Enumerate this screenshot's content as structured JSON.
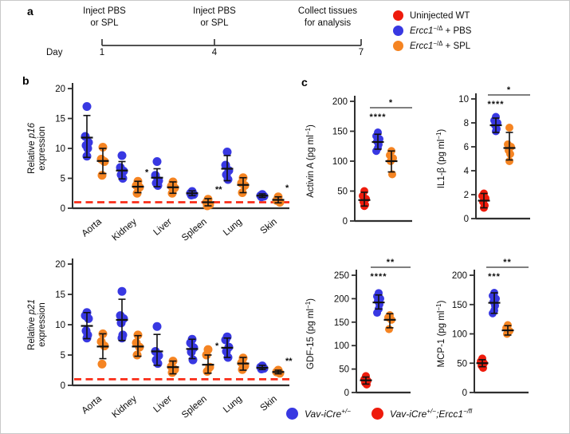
{
  "colors": {
    "red": "#ee1b0c",
    "blue": "#3838e2",
    "orange": "#f58422",
    "ref": "#fa2c17",
    "axis": "#2f2f2f",
    "bar": "#555555"
  },
  "panel_a": {
    "label": "a",
    "day_label": "Day",
    "events": [
      {
        "lines": [
          "Inject PBS",
          "or SPL"
        ],
        "day": "1"
      },
      {
        "lines": [
          "Inject PBS",
          "or SPL"
        ],
        "day": "4"
      },
      {
        "lines": [
          "Collect tissues",
          "for analysis"
        ],
        "day": "7"
      }
    ]
  },
  "panel_b": {
    "label": "b"
  },
  "panel_c": {
    "label": "c"
  },
  "legend_top": {
    "items": [
      {
        "color": "red",
        "label_parts": [
          {
            "t": "Uninjected WT"
          }
        ]
      },
      {
        "color": "blue",
        "label_parts": [
          {
            "t": "Ercc1",
            "i": true
          },
          {
            "t": "−/Δ",
            "sup": true
          },
          {
            "t": " + PBS"
          }
        ]
      },
      {
        "color": "orange",
        "label_parts": [
          {
            "t": "Ercc1",
            "i": true
          },
          {
            "t": "−/Δ",
            "sup": true
          },
          {
            "t": " + SPL"
          }
        ]
      }
    ]
  },
  "legend_bottom": {
    "items": [
      {
        "color": "blue",
        "label_parts": [
          {
            "t": "Vav-iCre",
            "i": true
          },
          {
            "t": "+/−",
            "sup": true,
            "i": true
          }
        ]
      },
      {
        "color": "red",
        "label_parts": [
          {
            "t": "Vav-iCre",
            "i": true
          },
          {
            "t": "+/−",
            "sup": true,
            "i": true
          },
          {
            "t": ";",
            "i": true
          },
          {
            "t": "Ercc1",
            "i": true
          },
          {
            "t": "−/fl",
            "sup": true,
            "i": true
          }
        ]
      }
    ]
  },
  "chart_data": [
    {
      "id": "p16",
      "type": "scatter",
      "ylabel_line1": [
        {
          "t": "Relative "
        },
        {
          "t": "p16",
          "i": true
        }
      ],
      "ylabel_line2": "expression",
      "ylim": [
        0,
        20
      ],
      "yticks": [
        0,
        5,
        10,
        15,
        20
      ],
      "reference_y": 1,
      "categories": [
        "Aorta",
        "Kidney",
        "Liver",
        "Spleen",
        "Lung",
        "Skin"
      ],
      "series": [
        {
          "name": "Ercc1−/Δ + PBS",
          "color": "blue",
          "groups": [
            {
              "points": [
                17,
                12,
                11,
                10.5,
                10,
                8.7
              ],
              "mean": 11.8,
              "lo": 8.5,
              "hi": 15.5,
              "sig": ""
            },
            {
              "points": [
                8.8,
                6.8,
                6.2,
                5.6,
                5.0
              ],
              "mean": 6.3,
              "lo": 4.9,
              "hi": 7.8,
              "sig": ""
            },
            {
              "points": [
                7.8,
                5.5,
                4.6,
                4.2,
                3.8
              ],
              "mean": 5.1,
              "lo": 3.6,
              "hi": 6.6,
              "sig": ""
            },
            {
              "points": [
                2.8,
                2.5,
                2.3,
                2.2
              ],
              "mean": 2.5,
              "lo": 2.1,
              "hi": 2.9,
              "sig": ""
            },
            {
              "points": [
                9.4,
                7.2,
                6.3,
                5.6,
                4.8
              ],
              "mean": 6.6,
              "lo": 4.6,
              "hi": 8.8,
              "sig": ""
            },
            {
              "points": [
                2.3,
                2.1,
                2.0,
                1.9
              ],
              "mean": 2.1,
              "lo": 1.8,
              "hi": 2.4,
              "sig": ""
            }
          ]
        },
        {
          "name": "Ercc1−/Δ + SPL",
          "color": "orange",
          "groups": [
            {
              "points": [
                10.2,
                8.2,
                7.8,
                5.5
              ],
              "mean": 7.9,
              "lo": 5.8,
              "hi": 10.0,
              "sig": ""
            },
            {
              "points": [
                4.5,
                3.8,
                3.5,
                2.5
              ],
              "mean": 3.6,
              "lo": 2.6,
              "hi": 4.5,
              "sig": "*"
            },
            {
              "points": [
                4.4,
                3.7,
                3.4,
                2.5
              ],
              "mean": 3.5,
              "lo": 2.5,
              "hi": 4.4,
              "sig": ""
            },
            {
              "points": [
                1.5,
                1.0,
                0.6,
                0.4
              ],
              "mean": 1.0,
              "lo": 0.4,
              "hi": 1.6,
              "sig": "**"
            },
            {
              "points": [
                5.1,
                4.2,
                3.8,
                2.6
              ],
              "mean": 3.9,
              "lo": 2.6,
              "hi": 5.1,
              "sig": ""
            },
            {
              "points": [
                1.9,
                1.3,
                1.0
              ],
              "mean": 1.4,
              "lo": 0.9,
              "hi": 1.9,
              "sig": "*"
            }
          ]
        }
      ]
    },
    {
      "id": "p21",
      "type": "scatter",
      "ylabel_line1": [
        {
          "t": "Relative "
        },
        {
          "t": "p21",
          "i": true
        }
      ],
      "ylabel_line2": "expression",
      "ylim": [
        0,
        20
      ],
      "yticks": [
        0,
        5,
        10,
        15,
        20
      ],
      "reference_y": 1,
      "categories": [
        "Aorta",
        "Kidney",
        "Liver",
        "Spleen",
        "Lung",
        "Skin"
      ],
      "series": [
        {
          "name": "Ercc1−/Δ + PBS",
          "color": "blue",
          "groups": [
            {
              "points": [
                12,
                11.5,
                11,
                9,
                8.3,
                7.8
              ],
              "mean": 9.8,
              "lo": 7.7,
              "hi": 12.0,
              "sig": ""
            },
            {
              "points": [
                15.5,
                11.5,
                11,
                10.3,
                8.3,
                7.8
              ],
              "mean": 10.8,
              "lo": 7.4,
              "hi": 14.2,
              "sig": ""
            },
            {
              "points": [
                9.7,
                5.6,
                4.9,
                4.2,
                3.6
              ],
              "mean": 5.6,
              "lo": 3.3,
              "hi": 8.4,
              "sig": ""
            },
            {
              "points": [
                7.6,
                7.0,
                6.2,
                5.5,
                4.2
              ],
              "mean": 6.0,
              "lo": 4.4,
              "hi": 7.6,
              "sig": ""
            },
            {
              "points": [
                8.0,
                7.5,
                6.3,
                5.6,
                4.6
              ],
              "mean": 6.2,
              "lo": 4.6,
              "hi": 7.8,
              "sig": ""
            },
            {
              "points": [
                3.2,
                3.0,
                2.8,
                2.7
              ],
              "mean": 2.9,
              "lo": 2.6,
              "hi": 3.3,
              "sig": ""
            }
          ]
        },
        {
          "name": "Ercc1−/Δ + SPL",
          "color": "orange",
          "groups": [
            {
              "points": [
                8.5,
                7.2,
                6.5,
                3.5
              ],
              "mean": 6.4,
              "lo": 4.4,
              "hi": 8.5,
              "sig": ""
            },
            {
              "points": [
                8.3,
                7.0,
                6.3,
                5.0
              ],
              "mean": 6.4,
              "lo": 4.8,
              "hi": 8.2,
              "sig": ""
            },
            {
              "points": [
                4.0,
                3.1,
                2.6,
                2.1
              ],
              "mean": 3.0,
              "lo": 1.9,
              "hi": 4.0,
              "sig": ""
            },
            {
              "points": [
                5.9,
                5.0,
                3.0,
                2.3
              ],
              "mean": 3.4,
              "lo": 2.0,
              "hi": 5.0,
              "sig": "*"
            },
            {
              "points": [
                4.5,
                3.7,
                3.2,
                2.6
              ],
              "mean": 3.6,
              "lo": 2.5,
              "hi": 4.6,
              "sig": ""
            },
            {
              "points": [
                2.5,
                2.2,
                2.0
              ],
              "mean": 2.2,
              "lo": 1.9,
              "hi": 2.5,
              "sig": "**"
            }
          ]
        }
      ]
    },
    {
      "id": "activin",
      "type": "scatter",
      "ylabel_parts": [
        {
          "t": "Activin A (pg ml"
        },
        {
          "t": "−1",
          "sup": true
        },
        {
          "t": ")"
        }
      ],
      "ylim": [
        0,
        200
      ],
      "yticks": [
        0,
        50,
        100,
        150,
        200
      ],
      "groups": [
        {
          "color": "red",
          "points": [
            50,
            42,
            37,
            32,
            27,
            25
          ],
          "mean": 35,
          "lo": 25,
          "hi": 48,
          "sig": ""
        },
        {
          "color": "blue",
          "points": [
            148,
            142,
            137,
            133,
            128,
            122,
            117
          ],
          "mean": 132,
          "lo": 120,
          "hi": 145,
          "sig": "****"
        },
        {
          "color": "orange",
          "points": [
            117,
            110,
            105,
            100,
            78
          ],
          "mean": 100,
          "lo": 82,
          "hi": 117,
          "sig": ""
        }
      ],
      "comparison": {
        "between": [
          "blue",
          "orange"
        ],
        "label": "*"
      }
    },
    {
      "id": "il1b",
      "type": "scatter",
      "ylabel_parts": [
        {
          "t": "IL1-β (pg ml"
        },
        {
          "t": "−1",
          "sup": true
        },
        {
          "t": ")"
        }
      ],
      "ylim": [
        0,
        10
      ],
      "yticks": [
        0,
        2,
        4,
        6,
        8,
        10
      ],
      "groups": [
        {
          "color": "red",
          "points": [
            2.1,
            1.9,
            1.7,
            1.4,
            1.1,
            0.9
          ],
          "mean": 1.5,
          "lo": 0.9,
          "hi": 2.1,
          "sig": ""
        },
        {
          "color": "blue",
          "points": [
            8.5,
            8.2,
            8.0,
            7.8,
            7.5,
            7.3
          ],
          "mean": 7.8,
          "lo": 7.2,
          "hi": 8.4,
          "sig": "****"
        },
        {
          "color": "orange",
          "points": [
            7.6,
            6.2,
            6.0,
            5.7,
            5.4,
            4.8
          ],
          "mean": 5.9,
          "lo": 4.9,
          "hi": 7.2,
          "sig": ""
        }
      ],
      "comparison": {
        "between": [
          "blue",
          "orange"
        ],
        "label": "*"
      }
    },
    {
      "id": "gdf15",
      "type": "scatter",
      "ylabel_parts": [
        {
          "t": "GDF-15 (pg ml"
        },
        {
          "t": "−1",
          "sup": true
        },
        {
          "t": ")"
        }
      ],
      "ylim": [
        0,
        250
      ],
      "yticks": [
        0,
        50,
        100,
        150,
        200,
        250
      ],
      "groups": [
        {
          "color": "red",
          "points": [
            35,
            28,
            25,
            21,
            17
          ],
          "mean": 26,
          "lo": 18,
          "hi": 33,
          "sig": ""
        },
        {
          "color": "blue",
          "points": [
            212,
            205,
            200,
            195,
            188,
            178,
            170
          ],
          "mean": 192,
          "lo": 178,
          "hi": 208,
          "sig": "****"
        },
        {
          "color": "orange",
          "points": [
            165,
            160,
            155,
            135
          ],
          "mean": 155,
          "lo": 138,
          "hi": 168,
          "sig": ""
        }
      ],
      "comparison": {
        "between": [
          "blue",
          "orange"
        ],
        "label": "**"
      }
    },
    {
      "id": "mcp1",
      "type": "scatter",
      "ylabel_parts": [
        {
          "t": "MCP-1 (pg ml"
        },
        {
          "t": "−1",
          "sup": true
        },
        {
          "t": ")"
        }
      ],
      "ylim": [
        0,
        200
      ],
      "yticks": [
        0,
        50,
        100,
        150,
        200
      ],
      "groups": [
        {
          "color": "red",
          "points": [
            58,
            53,
            50,
            46,
            42
          ],
          "mean": 50,
          "lo": 44,
          "hi": 56,
          "sig": ""
        },
        {
          "color": "blue",
          "points": [
            170,
            165,
            160,
            155,
            148,
            140,
            135
          ],
          "mean": 153,
          "lo": 135,
          "hi": 170,
          "sig": "***"
        },
        {
          "color": "orange",
          "points": [
            115,
            110,
            105,
            100
          ],
          "mean": 106,
          "lo": 98,
          "hi": 114,
          "sig": ""
        }
      ],
      "comparison": {
        "between": [
          "blue",
          "orange"
        ],
        "label": "**"
      }
    }
  ]
}
